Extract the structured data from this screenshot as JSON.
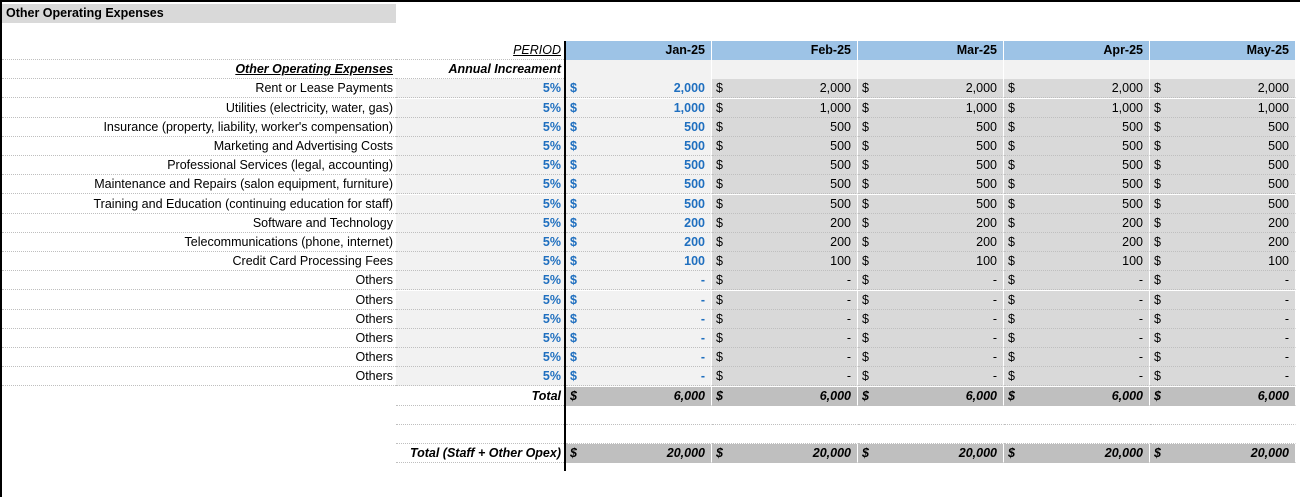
{
  "section_title": "Other Operating Expenses",
  "header": {
    "period_label": "PERIOD",
    "months": [
      "Jan-25",
      "Feb-25",
      "Mar-25",
      "Apr-25",
      "May-25"
    ],
    "row_title": "Other Operating Expenses",
    "increment_title": "Annual Increament"
  },
  "currency": "$",
  "rows": [
    {
      "label": "Rent or Lease Payments",
      "inc": "5%",
      "values": [
        "2,000",
        "2,000",
        "2,000",
        "2,000",
        "2,000"
      ]
    },
    {
      "label": "Utilities (electricity, water, gas)",
      "inc": "5%",
      "values": [
        "1,000",
        "1,000",
        "1,000",
        "1,000",
        "1,000"
      ]
    },
    {
      "label": "Insurance (property, liability, worker's compensation)",
      "inc": "5%",
      "values": [
        "500",
        "500",
        "500",
        "500",
        "500"
      ]
    },
    {
      "label": "Marketing and Advertising Costs",
      "inc": "5%",
      "values": [
        "500",
        "500",
        "500",
        "500",
        "500"
      ]
    },
    {
      "label": "Professional Services (legal, accounting)",
      "inc": "5%",
      "values": [
        "500",
        "500",
        "500",
        "500",
        "500"
      ]
    },
    {
      "label": "Maintenance and Repairs (salon equipment, furniture)",
      "inc": "5%",
      "values": [
        "500",
        "500",
        "500",
        "500",
        "500"
      ]
    },
    {
      "label": "Training and Education (continuing education for staff)",
      "inc": "5%",
      "values": [
        "500",
        "500",
        "500",
        "500",
        "500"
      ]
    },
    {
      "label": "Software and Technology",
      "inc": "5%",
      "values": [
        "200",
        "200",
        "200",
        "200",
        "200"
      ]
    },
    {
      "label": "Telecommunications (phone, internet)",
      "inc": "5%",
      "values": [
        "200",
        "200",
        "200",
        "200",
        "200"
      ]
    },
    {
      "label": "Credit Card Processing Fees",
      "inc": "5%",
      "values": [
        "100",
        "100",
        "100",
        "100",
        "100"
      ]
    },
    {
      "label": "Others",
      "inc": "5%",
      "values": [
        "-",
        "-",
        "-",
        "-",
        "-"
      ]
    },
    {
      "label": "Others",
      "inc": "5%",
      "values": [
        "-",
        "-",
        "-",
        "-",
        "-"
      ]
    },
    {
      "label": "Others",
      "inc": "5%",
      "values": [
        "-",
        "-",
        "-",
        "-",
        "-"
      ]
    },
    {
      "label": "Others",
      "inc": "5%",
      "values": [
        "-",
        "-",
        "-",
        "-",
        "-"
      ]
    },
    {
      "label": "Others",
      "inc": "5%",
      "values": [
        "-",
        "-",
        "-",
        "-",
        "-"
      ]
    },
    {
      "label": "Others",
      "inc": "5%",
      "values": [
        "-",
        "-",
        "-",
        "-",
        "-"
      ]
    }
  ],
  "total": {
    "label": "Total",
    "values": [
      "6,000",
      "6,000",
      "6,000",
      "6,000",
      "6,000"
    ]
  },
  "grand_total": {
    "label": "Total (Staff + Other  Opex)",
    "values": [
      "20,000",
      "20,000",
      "20,000",
      "20,000",
      "20,000"
    ]
  }
}
